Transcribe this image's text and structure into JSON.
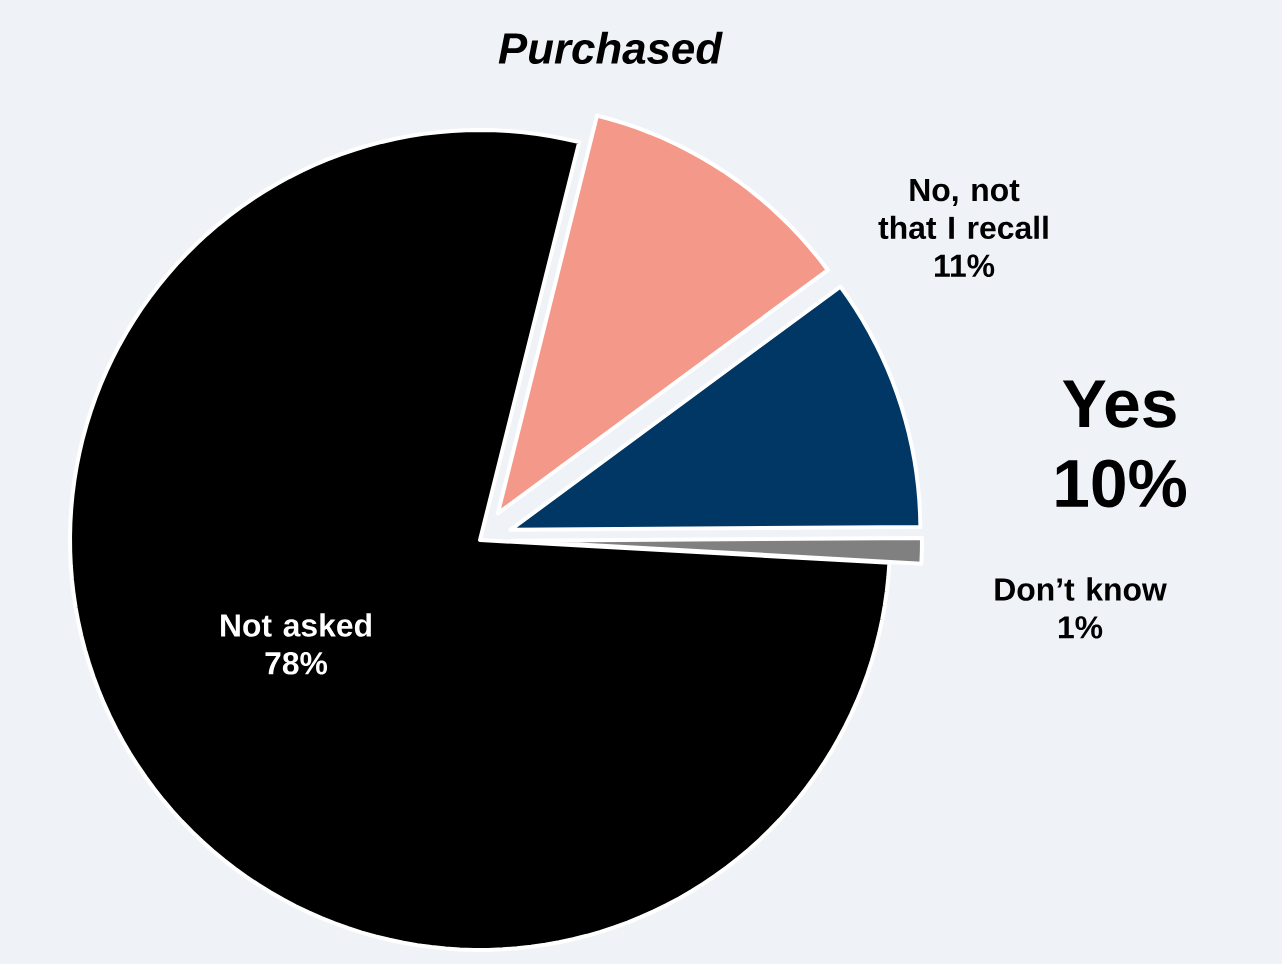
{
  "chart_data": {
    "type": "pie",
    "title": "Purchased",
    "categories": [
      "No, not that I recall",
      "Yes",
      "Don’t know",
      "Not asked"
    ],
    "values": [
      11,
      10,
      1,
      78
    ],
    "value_labels": [
      "11%",
      "10%",
      "1%",
      "78%"
    ],
    "colors": [
      "#f4998a",
      "#003764",
      "#808080",
      "#000000"
    ]
  }
}
